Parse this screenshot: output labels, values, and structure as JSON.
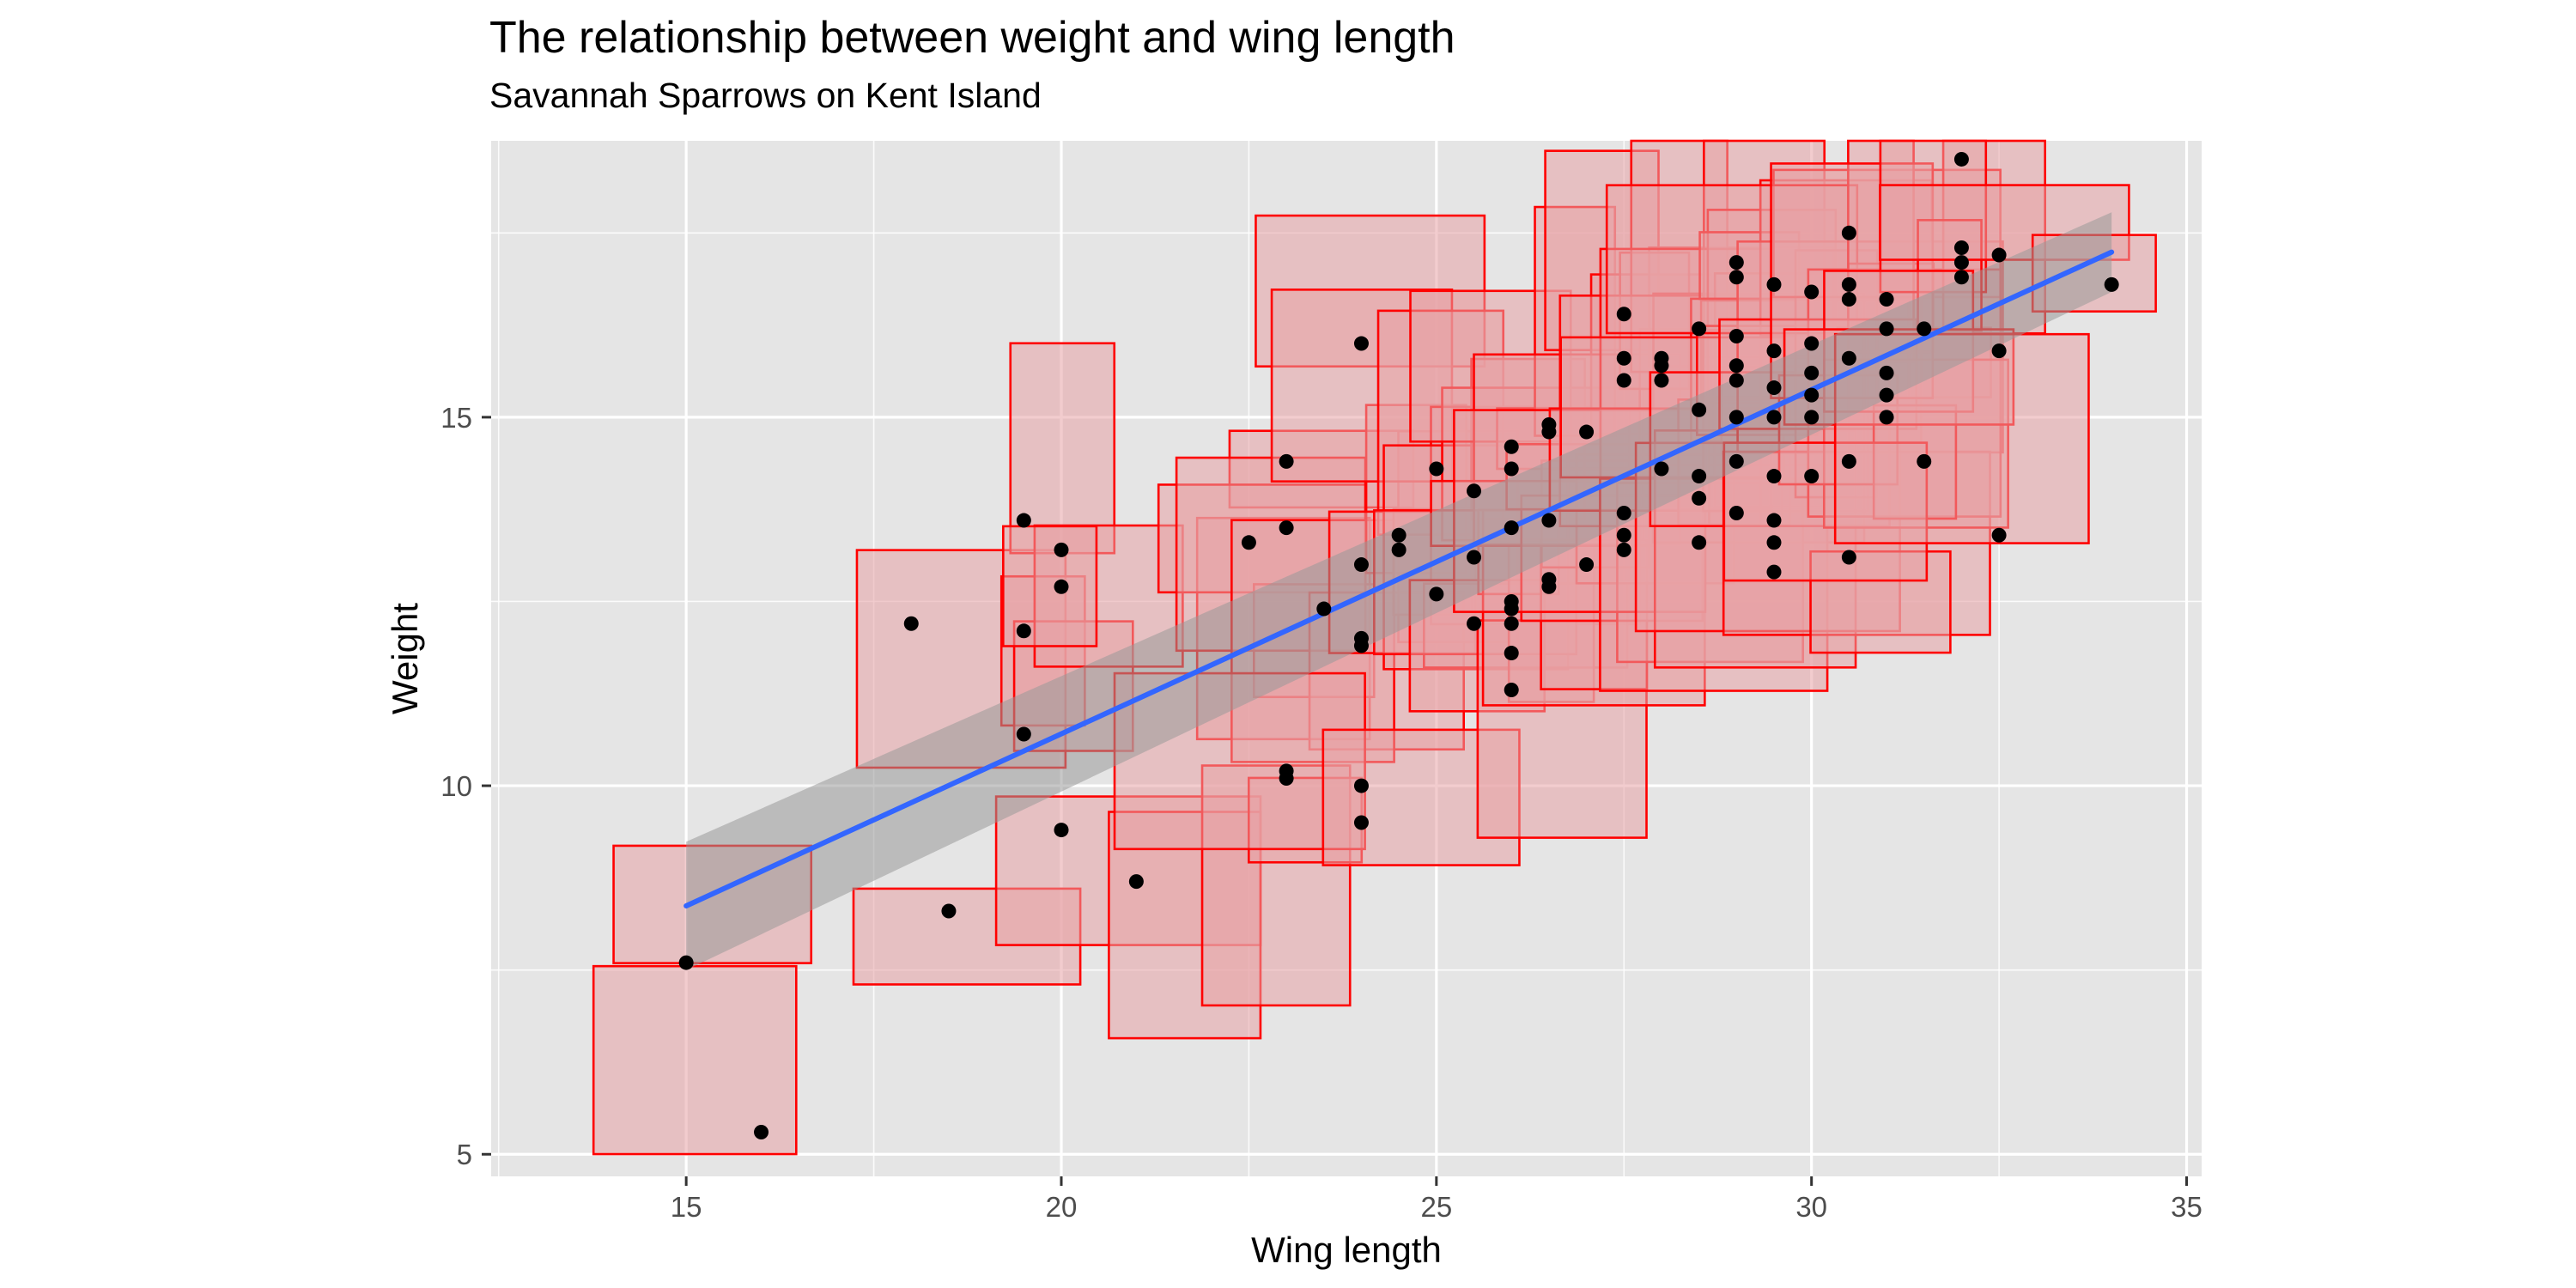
{
  "chart_data": {
    "type": "scatter",
    "title": "The relationship between weight and wing length",
    "subtitle": "Savannah Sparrows on Kent Island",
    "xlabel": "Wing length",
    "ylabel": "Weight",
    "xlim": [
      12.4,
      35.2
    ],
    "ylim": [
      4.7,
      18.75
    ],
    "xticks": [
      15,
      20,
      25,
      30,
      35
    ],
    "yticks": [
      5,
      10,
      15
    ],
    "grid": true,
    "legend": "none",
    "colors": {
      "panel": "#E5E5E5",
      "grid_major": "#FFFFFF",
      "rect_fill": "#E8A3A6",
      "rect_stroke": "#FF0000",
      "point": "#000000",
      "fit_line": "#3366FF",
      "ribbon": "#999999"
    },
    "points": [
      [
        15,
        7.6
      ],
      [
        16,
        5.3
      ],
      [
        18,
        12.2
      ],
      [
        18.5,
        8.3
      ],
      [
        19.5,
        13.6
      ],
      [
        19.5,
        12.1
      ],
      [
        19.5,
        10.7
      ],
      [
        20,
        13.2
      ],
      [
        20,
        12.7
      ],
      [
        20,
        9.4
      ],
      [
        21,
        8.7
      ],
      [
        22.5,
        13.3
      ],
      [
        23,
        14.4
      ],
      [
        23,
        13.5
      ],
      [
        23,
        10.2
      ],
      [
        23,
        10.1
      ],
      [
        23.5,
        12.4
      ],
      [
        24,
        16
      ],
      [
        24,
        13
      ],
      [
        24,
        12
      ],
      [
        24,
        11.9
      ],
      [
        24,
        10
      ],
      [
        24,
        9.5
      ],
      [
        24.5,
        13.4
      ],
      [
        24.5,
        13.2
      ],
      [
        25,
        14.3
      ],
      [
        25,
        12.6
      ],
      [
        25.5,
        14
      ],
      [
        25.5,
        13.1
      ],
      [
        25.5,
        12.2
      ],
      [
        26,
        14.6
      ],
      [
        26,
        14.3
      ],
      [
        26,
        13.5
      ],
      [
        26,
        12.5
      ],
      [
        26,
        12.4
      ],
      [
        26,
        12.2
      ],
      [
        26,
        11.8
      ],
      [
        26,
        11.3
      ],
      [
        26.5,
        14.9
      ],
      [
        26.5,
        14.8
      ],
      [
        26.5,
        13.6
      ],
      [
        26.5,
        12.8
      ],
      [
        26.5,
        12.7
      ],
      [
        27,
        14.8
      ],
      [
        27,
        13
      ],
      [
        27.5,
        16.4
      ],
      [
        27.5,
        15.8
      ],
      [
        27.5,
        15.5
      ],
      [
        27.5,
        13.7
      ],
      [
        27.5,
        13.4
      ],
      [
        27.5,
        13.2
      ],
      [
        28,
        15.8
      ],
      [
        28,
        15.7
      ],
      [
        28,
        15.5
      ],
      [
        28,
        14.3
      ],
      [
        28.5,
        16.2
      ],
      [
        28.5,
        15.1
      ],
      [
        28.5,
        14.2
      ],
      [
        28.5,
        13.9
      ],
      [
        28.5,
        13.3
      ],
      [
        29,
        17.1
      ],
      [
        29,
        16.9
      ],
      [
        29,
        16.1
      ],
      [
        29,
        15.7
      ],
      [
        29,
        15.5
      ],
      [
        29,
        15
      ],
      [
        29,
        14.4
      ],
      [
        29,
        13.7
      ],
      [
        29.5,
        16.8
      ],
      [
        29.5,
        15.9
      ],
      [
        29.5,
        15.4
      ],
      [
        29.5,
        15
      ],
      [
        29.5,
        14.2
      ],
      [
        29.5,
        13.6
      ],
      [
        29.5,
        13.3
      ],
      [
        29.5,
        12.9
      ],
      [
        30,
        16.7
      ],
      [
        30,
        16
      ],
      [
        30,
        15.6
      ],
      [
        30,
        15.3
      ],
      [
        30,
        15
      ],
      [
        30,
        14.2
      ],
      [
        30.5,
        17.5
      ],
      [
        30.5,
        16.8
      ],
      [
        30.5,
        16.6
      ],
      [
        30.5,
        15.8
      ],
      [
        30.5,
        14.4
      ],
      [
        30.5,
        13.1
      ],
      [
        31,
        16.6
      ],
      [
        31,
        16.2
      ],
      [
        31,
        15.6
      ],
      [
        31,
        15.3
      ],
      [
        31,
        15
      ],
      [
        31.5,
        16.2
      ],
      [
        31.5,
        14.4
      ],
      [
        32,
        18.5
      ],
      [
        32,
        17.3
      ],
      [
        32,
        17.1
      ],
      [
        32,
        16.9
      ],
      [
        32.5,
        17.2
      ],
      [
        32.5,
        15.9
      ],
      [
        32.5,
        13.4
      ],
      [
        34,
        16.8
      ]
    ],
    "fit": {
      "x": [
        15,
        34
      ],
      "y": [
        8.37,
        17.24
      ],
      "ci_lower": [
        7.5,
        16.7
      ],
      "ci_upper": [
        9.24,
        17.78
      ]
    }
  }
}
